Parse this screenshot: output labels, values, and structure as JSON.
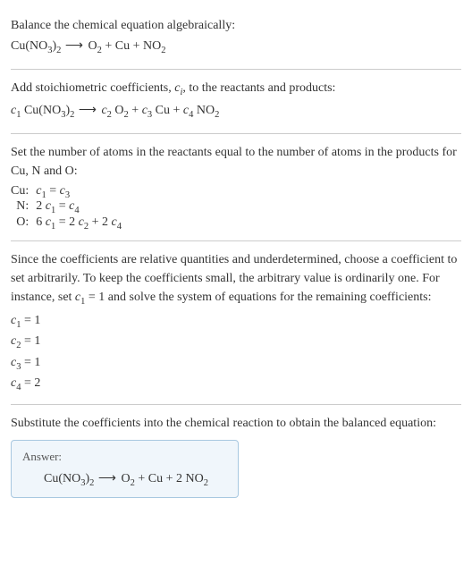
{
  "section1": {
    "title": "Balance the chemical equation algebraically:",
    "equation_lhs": "Cu(NO",
    "equation_lhs_sub1": "3",
    "equation_lhs_close": ")",
    "equation_lhs_sub2": "2",
    "arrow": " ⟶ ",
    "rhs_o": "O",
    "rhs_o_sub": "2",
    "rhs_cu": " + Cu + NO",
    "rhs_no_sub": "2"
  },
  "section2": {
    "title_a": "Add stoichiometric coefficients, ",
    "title_ci": "c",
    "title_ci_sub": "i",
    "title_b": ", to the reactants and products:",
    "c1": "c",
    "c1_sub": "1",
    "sp1": " Cu(NO",
    "sp1_sub1": "3",
    "sp1_close": ")",
    "sp1_sub2": "2",
    "arrow": " ⟶ ",
    "c2": "c",
    "c2_sub": "2",
    "sp2": " O",
    "sp2_sub": "2",
    "plus1": " + ",
    "c3": "c",
    "c3_sub": "3",
    "sp3": " Cu + ",
    "c4": "c",
    "c4_sub": "4",
    "sp4": " NO",
    "sp4_sub": "2"
  },
  "section3": {
    "title": "Set the number of atoms in the reactants equal to the number of atoms in the products for Cu, N and O:",
    "rows": [
      {
        "label": "Cu:",
        "lhs_c": "c",
        "lhs_sub": "1",
        "eq": " = ",
        "rhs_c": "c",
        "rhs_sub": "3"
      },
      {
        "label": "N:",
        "lhs_pre": "2 ",
        "lhs_c": "c",
        "lhs_sub": "1",
        "eq": " = ",
        "rhs_c": "c",
        "rhs_sub": "4"
      },
      {
        "label": "O:",
        "lhs_pre": "6 ",
        "lhs_c": "c",
        "lhs_sub": "1",
        "eq": " = 2 ",
        "rhs_c": "c",
        "rhs_sub": "2",
        "plus": " + 2 ",
        "rhs2_c": "c",
        "rhs2_sub": "4"
      }
    ]
  },
  "section4": {
    "title_a": "Since the coefficients are relative quantities and underdetermined, choose a coefficient to set arbitrarily. To keep the coefficients small, the arbitrary value is ordinarily one. For instance, set ",
    "title_c": "c",
    "title_c_sub": "1",
    "title_b": " = 1 and solve the system of equations for the remaining coefficients:",
    "coeffs": [
      {
        "c": "c",
        "sub": "1",
        "val": " = 1"
      },
      {
        "c": "c",
        "sub": "2",
        "val": " = 1"
      },
      {
        "c": "c",
        "sub": "3",
        "val": " = 1"
      },
      {
        "c": "c",
        "sub": "4",
        "val": " = 2"
      }
    ]
  },
  "section5": {
    "title": "Substitute the coefficients into the chemical reaction to obtain the balanced equation:",
    "answer_label": "Answer:",
    "eq_lhs": "Cu(NO",
    "eq_lhs_sub1": "3",
    "eq_lhs_close": ")",
    "eq_lhs_sub2": "2",
    "arrow": " ⟶ ",
    "eq_o": "O",
    "eq_o_sub": "2",
    "eq_mid": " + Cu + 2 NO",
    "eq_no_sub": "2"
  }
}
